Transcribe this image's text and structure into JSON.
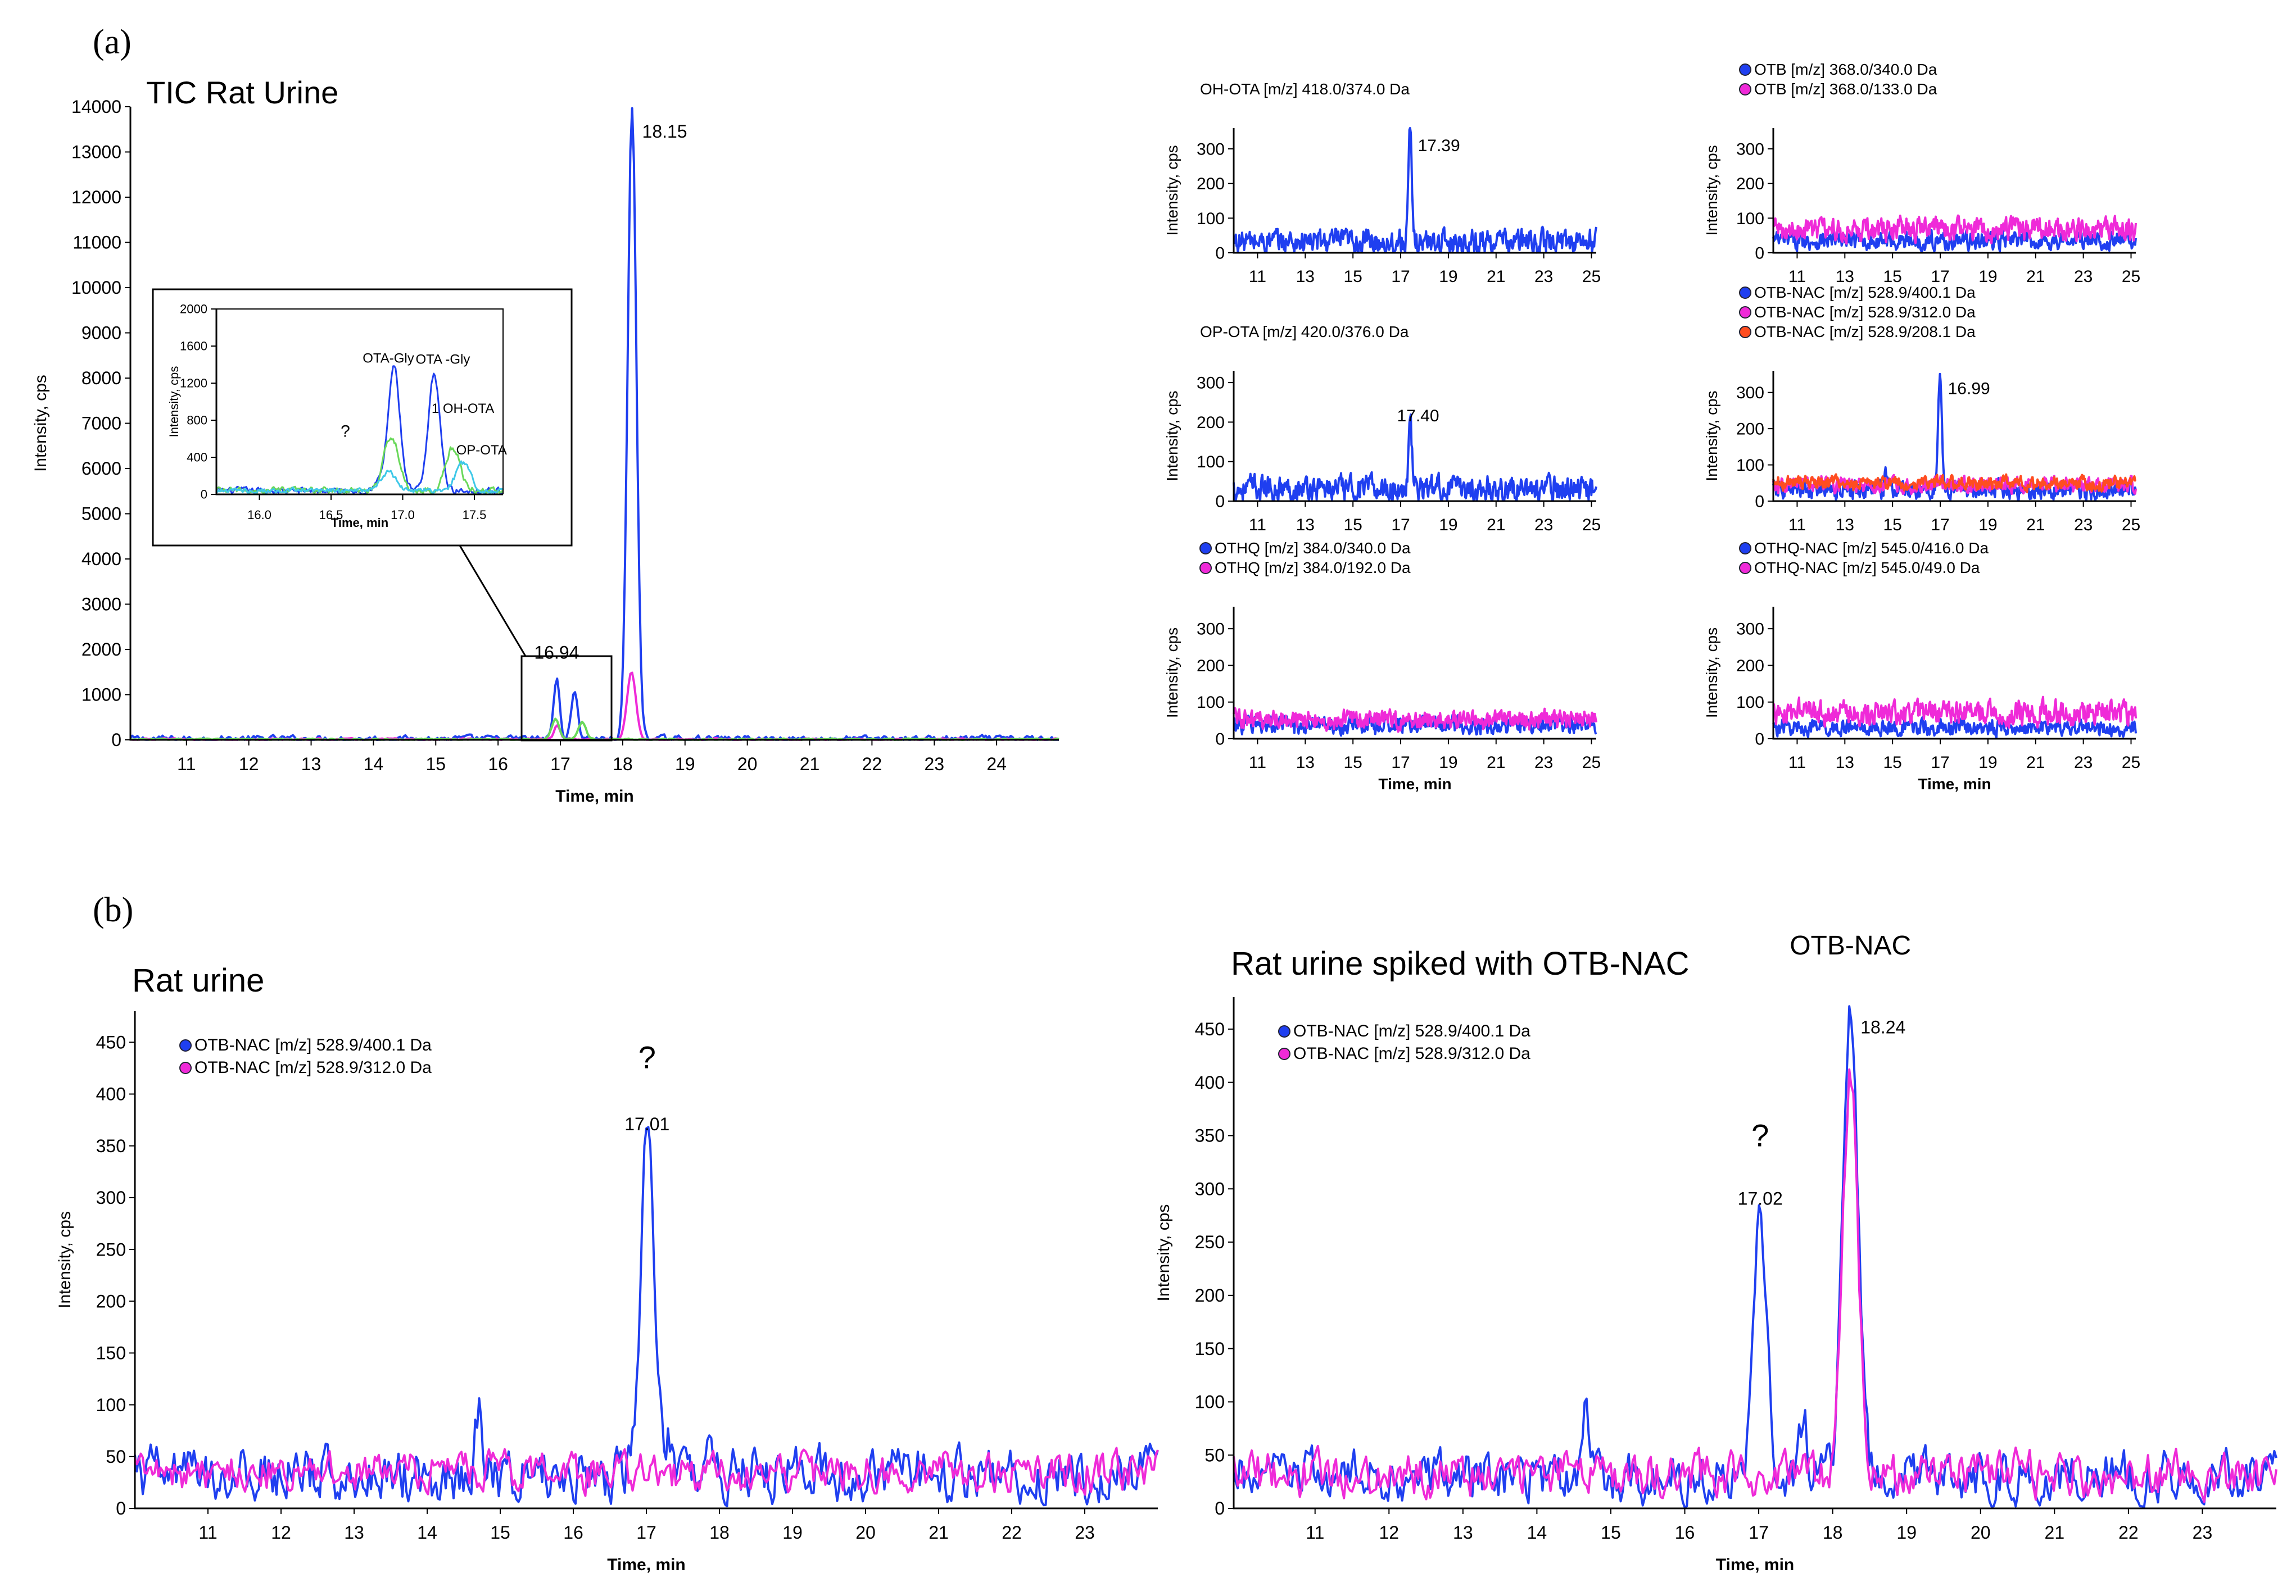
{
  "figure": {
    "panel_a_label": "(a)",
    "panel_b_label": "(b)"
  },
  "colors": {
    "blue": "#1f3ff0",
    "magenta": "#ef2ad8",
    "orange": "#ff4d20",
    "green": "#6ad85a",
    "cyan": "#3fc8e8",
    "axis": "#000000"
  },
  "chart_data": [
    {
      "id": "tic",
      "type": "line",
      "title": "TIC Rat Urine",
      "xlabel": "Time, min",
      "ylabel": "Intensity, cps",
      "xlim": [
        10.1,
        25.0
      ],
      "ylim": [
        0,
        14000
      ],
      "xticks": [
        11,
        12,
        13,
        14,
        15,
        16,
        17,
        18,
        19,
        20,
        21,
        22,
        23,
        24
      ],
      "yticks": [
        0,
        1000,
        2000,
        3000,
        4000,
        5000,
        6000,
        7000,
        8000,
        9000,
        10000,
        11000,
        12000,
        13000,
        14000
      ],
      "peak_labels": [
        {
          "x": 18.15,
          "y": 14000,
          "text": "18.15"
        },
        {
          "x": 16.94,
          "y": 1300,
          "text": "16.94"
        }
      ],
      "series": [
        {
          "name": "TIC blue",
          "color": "blue",
          "peaks": [
            [
              16.94,
              1300,
              0.05
            ],
            [
              17.23,
              1080,
              0.05
            ],
            [
              18.15,
              13950,
              0.07
            ]
          ],
          "noise": 60,
          "base": 25
        },
        {
          "name": "TIC magenta",
          "color": "magenta",
          "peaks": [
            [
              16.95,
              320,
              0.05
            ],
            [
              18.14,
              1500,
              0.07
            ]
          ],
          "noise": 20,
          "base": 10
        },
        {
          "name": "TIC green",
          "color": "green",
          "peaks": [
            [
              16.92,
              450,
              0.06
            ],
            [
              17.35,
              380,
              0.06
            ]
          ],
          "noise": 15,
          "base": 10
        }
      ]
    },
    {
      "id": "tic-inset",
      "type": "line",
      "xlabel": "Time, min",
      "ylabel": "Intensity, cps",
      "xlim": [
        15.7,
        17.7
      ],
      "ylim": [
        0,
        2000
      ],
      "xticks": [
        16.0,
        16.5,
        17.0,
        17.5
      ],
      "xtick_labels": [
        "16.0",
        "16.5",
        "17.0",
        "17.5"
      ],
      "yticks": [
        0,
        400,
        800,
        1200,
        1600,
        2000
      ],
      "annotations": [
        {
          "x": 16.9,
          "y": 1420,
          "text": "OTA-Gly"
        },
        {
          "x": 17.28,
          "y": 1410,
          "text": "OTA -Gly"
        },
        {
          "x": 17.42,
          "y": 880,
          "text": "1 OH-OTA"
        },
        {
          "x": 17.55,
          "y": 430,
          "text": "OP-OTA"
        },
        {
          "x": 16.6,
          "y": 620,
          "text": "?"
        }
      ],
      "series": [
        {
          "name": "blue",
          "color": "blue",
          "peaks": [
            [
              16.94,
              1320,
              0.04
            ],
            [
              17.22,
              1260,
              0.04
            ],
            [
              16.85,
              100,
              0.05
            ]
          ],
          "noise": 30,
          "base": 40
        },
        {
          "name": "green",
          "color": "green",
          "peaks": [
            [
              16.92,
              600,
              0.05
            ],
            [
              17.35,
              460,
              0.05
            ]
          ],
          "noise": 30,
          "base": 40
        },
        {
          "name": "cyan",
          "color": "cyan",
          "peaks": [
            [
              17.42,
              300,
              0.05
            ],
            [
              16.9,
              200,
              0.05
            ]
          ],
          "noise": 25,
          "base": 40
        }
      ]
    },
    {
      "id": "oh-ota",
      "type": "line",
      "legend": [
        {
          "text": "OH-OTA [m/z] 418.0/374.0 Da",
          "color": null
        }
      ],
      "xlabel": "",
      "ylabel": "Intensity, cps",
      "xlim": [
        10.0,
        25.2
      ],
      "ylim": [
        0,
        360
      ],
      "xticks": [
        11,
        13,
        15,
        17,
        19,
        21,
        23,
        25
      ],
      "yticks": [
        0,
        100,
        200,
        300
      ],
      "peak_labels": [
        {
          "x": 17.39,
          "y": 350,
          "text": "17.39"
        }
      ],
      "series": [
        {
          "name": "OH-OTA",
          "color": "blue",
          "peaks": [
            [
              17.39,
              310,
              0.07
            ]
          ],
          "noise": 30,
          "base": 32
        }
      ]
    },
    {
      "id": "otb",
      "type": "line",
      "legend": [
        {
          "text": "OTB [m/z] 368.0/340.0 Da",
          "color": "blue"
        },
        {
          "text": "OTB [m/z] 368.0/133.0 Da",
          "color": "magenta"
        }
      ],
      "xlabel": "",
      "ylabel": "Intensity, cps",
      "xlim": [
        10.0,
        25.2
      ],
      "ylim": [
        0,
        360
      ],
      "xticks": [
        11,
        13,
        15,
        17,
        19,
        21,
        23,
        25
      ],
      "yticks": [
        0,
        100,
        200,
        300
      ],
      "series": [
        {
          "name": "OTB 340",
          "color": "blue",
          "peaks": [],
          "noise": 22,
          "base": 35
        },
        {
          "name": "OTB 133",
          "color": "magenta",
          "peaks": [],
          "noise": 28,
          "base": 68
        }
      ]
    },
    {
      "id": "op-ota",
      "type": "line",
      "legend": [
        {
          "text": "OP-OTA [m/z] 420.0/376.0 Da",
          "color": null
        }
      ],
      "xlabel": "",
      "ylabel": "Intensity, cps",
      "xlim": [
        10.0,
        25.2
      ],
      "ylim": [
        0,
        330
      ],
      "xticks": [
        11,
        13,
        15,
        17,
        19,
        21,
        23,
        25
      ],
      "yticks": [
        0,
        100,
        200,
        300
      ],
      "peak_labels": [
        {
          "x": 17.4,
          "y": 245,
          "text": "17.40"
        }
      ],
      "series": [
        {
          "name": "OP-OTA",
          "color": "blue",
          "peaks": [
            [
              17.4,
              165,
              0.07
            ]
          ],
          "noise": 28,
          "base": 32
        }
      ]
    },
    {
      "id": "otb-nac-small",
      "type": "line",
      "legend": [
        {
          "text": "OTB-NAC [m/z] 528.9/400.1 Da",
          "color": "blue"
        },
        {
          "text": "OTB-NAC [m/z] 528.9/312.0 Da",
          "color": "magenta"
        },
        {
          "text": "OTB-NAC [m/z] 528.9/208.1 Da",
          "color": "orange"
        }
      ],
      "xlabel": "",
      "ylabel": "Intensity, cps",
      "xlim": [
        10.0,
        25.2
      ],
      "ylim": [
        0,
        360
      ],
      "xticks": [
        11,
        13,
        15,
        17,
        19,
        21,
        23,
        25
      ],
      "yticks": [
        0,
        100,
        200,
        300
      ],
      "peak_labels": [
        {
          "x": 16.99,
          "y": 350,
          "text": "16.99"
        }
      ],
      "series": [
        {
          "name": "400.1",
          "color": "blue",
          "peaks": [
            [
              16.99,
              320,
              0.08
            ],
            [
              14.7,
              55,
              0.05
            ]
          ],
          "noise": 22,
          "base": 30
        },
        {
          "name": "312.0",
          "color": "magenta",
          "peaks": [],
          "noise": 18,
          "base": 45
        },
        {
          "name": "208.1",
          "color": "orange",
          "peaks": [],
          "noise": 16,
          "base": 50
        }
      ]
    },
    {
      "id": "othq",
      "type": "line",
      "legend": [
        {
          "text": "OTHQ [m/z] 384.0/340.0 Da",
          "color": "blue"
        },
        {
          "text": "OTHQ [m/z] 384.0/192.0 Da",
          "color": "magenta"
        }
      ],
      "xlabel": "Time, min",
      "ylabel": "Intensity, cps",
      "xlim": [
        10.0,
        25.2
      ],
      "ylim": [
        0,
        360
      ],
      "xticks": [
        11,
        13,
        15,
        17,
        19,
        21,
        23,
        25
      ],
      "yticks": [
        0,
        100,
        200,
        300
      ],
      "series": [
        {
          "name": "340.0",
          "color": "blue",
          "peaks": [],
          "noise": 20,
          "base": 38
        },
        {
          "name": "192.0",
          "color": "magenta",
          "peaks": [],
          "noise": 22,
          "base": 52
        }
      ]
    },
    {
      "id": "othq-nac",
      "type": "line",
      "legend": [
        {
          "text": "OTHQ-NAC [m/z] 545.0/416.0 Da",
          "color": "blue"
        },
        {
          "text": "OTHQ-NAC [m/z] 545.0/49.0 Da",
          "color": "magenta"
        }
      ],
      "xlabel": "Time, min",
      "ylabel": "Intensity, cps",
      "xlim": [
        10.0,
        25.2
      ],
      "ylim": [
        0,
        360
      ],
      "xticks": [
        11,
        13,
        15,
        17,
        19,
        21,
        23,
        25
      ],
      "yticks": [
        0,
        100,
        200,
        300
      ],
      "series": [
        {
          "name": "416.0",
          "color": "blue",
          "peaks": [],
          "noise": 18,
          "base": 30
        },
        {
          "name": "49.0",
          "color": "magenta",
          "peaks": [],
          "noise": 28,
          "base": 70
        }
      ]
    },
    {
      "id": "rat-urine",
      "type": "line",
      "title": "Rat urine",
      "legend": [
        {
          "text": "OTB-NAC [m/z] 528.9/400.1 Da",
          "color": "blue"
        },
        {
          "text": "OTB-NAC [m/z] 528.9/312.0 Da",
          "color": "magenta"
        }
      ],
      "xlabel": "Time, min",
      "ylabel": "Intensity, cps",
      "xlim": [
        10.0,
        24.0
      ],
      "ylim": [
        0,
        480
      ],
      "xticks": [
        11,
        12,
        13,
        14,
        15,
        16,
        17,
        18,
        19,
        20,
        21,
        22,
        23
      ],
      "yticks": [
        0,
        50,
        100,
        150,
        200,
        250,
        300,
        350,
        400,
        450
      ],
      "peak_labels": [
        {
          "x": 17.01,
          "y": 365,
          "text": "17.01"
        },
        {
          "x": 17.01,
          "y": 425,
          "text": "?"
        }
      ],
      "series": [
        {
          "name": "400.1",
          "color": "blue",
          "peaks": [
            [
              17.01,
              330,
              0.09
            ],
            [
              14.7,
              60,
              0.04
            ],
            [
              17.3,
              40,
              0.06
            ],
            [
              17.8,
              35,
              0.05
            ]
          ],
          "noise": 22,
          "base": 33
        },
        {
          "name": "312.0",
          "color": "magenta",
          "peaks": [],
          "noise": 16,
          "base": 35
        }
      ]
    },
    {
      "id": "spiked",
      "type": "line",
      "title": "Rat urine spiked with OTB-NAC",
      "legend": [
        {
          "text": "OTB-NAC [m/z] 528.9/400.1 Da",
          "color": "blue"
        },
        {
          "text": "OTB-NAC [m/z] 528.9/312.0 Da",
          "color": "magenta"
        }
      ],
      "xlabel": "Time, min",
      "ylabel": "Intensity, cps",
      "xlim": [
        9.9,
        24.0
      ],
      "ylim": [
        0,
        480
      ],
      "xticks": [
        11,
        12,
        13,
        14,
        15,
        16,
        17,
        18,
        19,
        20,
        21,
        22,
        23
      ],
      "yticks": [
        0,
        50,
        100,
        150,
        200,
        250,
        300,
        350,
        400,
        450
      ],
      "peak_labels": [
        {
          "x": 18.24,
          "y": 475,
          "text": "18.24"
        },
        {
          "x": 18.24,
          "y": 520,
          "text": "OTB-NAC"
        },
        {
          "x": 17.02,
          "y": 285,
          "text": "17.02"
        },
        {
          "x": 17.02,
          "y": 340,
          "text": "?"
        }
      ],
      "series": [
        {
          "name": "400.1",
          "color": "blue",
          "peaks": [
            [
              17.02,
              240,
              0.09
            ],
            [
              18.24,
              440,
              0.1
            ],
            [
              14.65,
              60,
              0.05
            ],
            [
              17.6,
              55,
              0.06
            ]
          ],
          "noise": 20,
          "base": 30
        },
        {
          "name": "312.0",
          "color": "magenta",
          "peaks": [
            [
              18.24,
              380,
              0.1
            ]
          ],
          "noise": 18,
          "base": 32
        }
      ]
    }
  ]
}
